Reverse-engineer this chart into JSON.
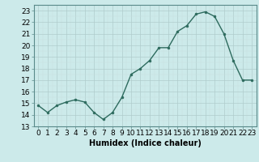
{
  "x": [
    0,
    1,
    2,
    3,
    4,
    5,
    6,
    7,
    8,
    9,
    10,
    11,
    12,
    13,
    14,
    15,
    16,
    17,
    18,
    19,
    20,
    21,
    22,
    23
  ],
  "y": [
    14.8,
    14.2,
    14.8,
    15.1,
    15.3,
    15.1,
    14.2,
    13.6,
    14.2,
    15.5,
    17.5,
    18.0,
    18.7,
    19.8,
    19.8,
    21.2,
    21.7,
    22.7,
    22.9,
    22.5,
    21.0,
    18.7,
    17.0,
    17.0
  ],
  "line_color": "#2d6b5e",
  "marker_color": "#2d6b5e",
  "bg_color": "#cceaea",
  "grid_color_major": "#b8d8d8",
  "grid_color_minor": "#d4ecec",
  "xlabel": "Humidex (Indice chaleur)",
  "ylim": [
    13,
    23.5
  ],
  "xlim": [
    -0.5,
    23.5
  ],
  "yticks": [
    13,
    14,
    15,
    16,
    17,
    18,
    19,
    20,
    21,
    22,
    23
  ],
  "xticks": [
    0,
    1,
    2,
    3,
    4,
    5,
    6,
    7,
    8,
    9,
    10,
    11,
    12,
    13,
    14,
    15,
    16,
    17,
    18,
    19,
    20,
    21,
    22,
    23
  ],
  "label_fontsize": 7,
  "tick_fontsize": 6.5
}
